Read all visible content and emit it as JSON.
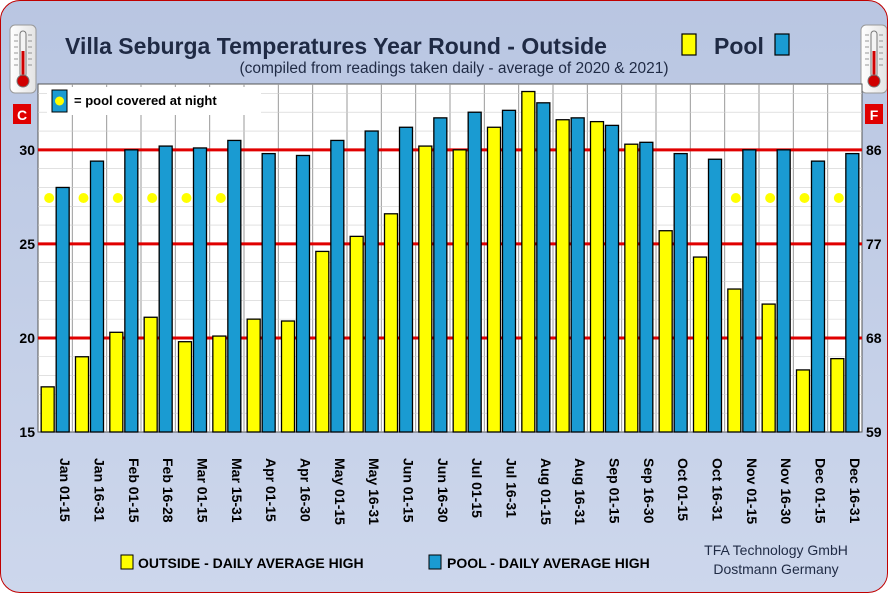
{
  "chart_data": {
    "type": "bar",
    "title": "Villa Seburga Temperatures Year Round -  Outside",
    "title_pool": "Pool",
    "subtitle": "(compiled from readings taken daily - average of 2020 & 2021)",
    "left_unit": "C",
    "right_unit": "F",
    "ylim": [
      15,
      33.5
    ],
    "y_ticks_c": [
      "15",
      "20",
      "25",
      "30"
    ],
    "y_ticks_f": [
      "59",
      "68",
      "77",
      "86"
    ],
    "categories": [
      "Jan 01-15",
      "Jan 16-31",
      "Feb 01-15",
      "Feb 16-28",
      "Mar 01-15",
      "Mar 15-31",
      "Apr 01-15",
      "Apr 16-30",
      "May 01-15",
      "May 16-31",
      "Jun 01-15",
      "Jun 16-30",
      "Jul 01-15",
      "Jul 16-31",
      "Aug 01-15",
      "Aug 16-31",
      "Sep 01-15",
      "Sep 16-30",
      "Oct 01-15",
      "Oct 16-31",
      "Nov 01-15",
      "Nov 16-30",
      "Dec 01-15",
      "Dec 16-31"
    ],
    "series": [
      {
        "name": "OUTSIDE - DAILY AVERAGE HIGH",
        "color": "#ffff00",
        "values": [
          17.4,
          19.0,
          20.3,
          21.1,
          19.8,
          20.1,
          21.0,
          20.9,
          24.6,
          25.4,
          26.6,
          30.2,
          30.0,
          31.2,
          33.1,
          31.6,
          31.5,
          30.3,
          25.7,
          24.3,
          22.6,
          21.8,
          18.3,
          18.9
        ]
      },
      {
        "name": "POOL - DAILY AVERAGE HIGH",
        "color": "#1a9bd2",
        "values": [
          28.0,
          29.4,
          30.0,
          30.2,
          30.1,
          30.5,
          29.8,
          29.7,
          30.5,
          31.0,
          31.2,
          31.7,
          32.0,
          32.1,
          32.5,
          31.7,
          31.3,
          30.4,
          29.8,
          29.5,
          30.0,
          30.0,
          29.4,
          29.8
        ]
      }
    ],
    "pool_covered": [
      true,
      true,
      true,
      true,
      true,
      true,
      false,
      false,
      false,
      false,
      false,
      false,
      false,
      false,
      false,
      false,
      false,
      false,
      false,
      false,
      true,
      true,
      true,
      true
    ],
    "legend_note": "= pool covered at night",
    "credit_line1": "TFA Technology GmbH",
    "credit_line2": "Dostmann Germany"
  }
}
